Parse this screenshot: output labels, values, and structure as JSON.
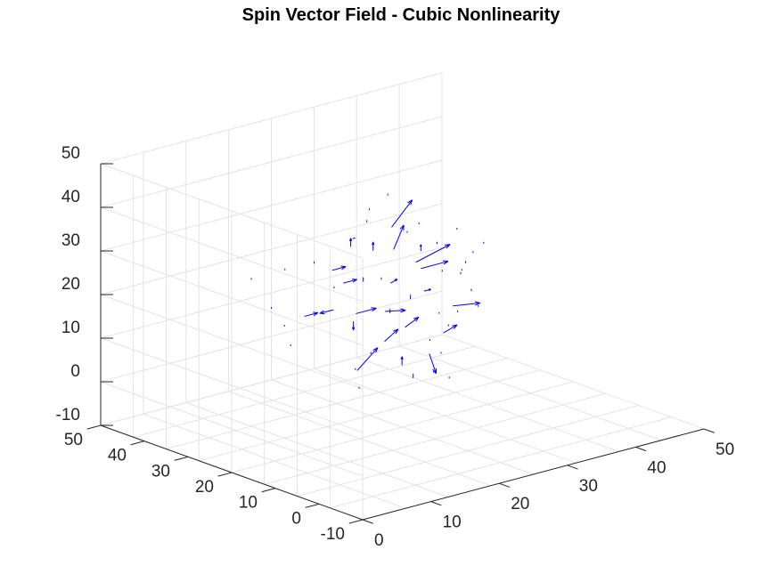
{
  "chart_data": {
    "type": "quiver3d",
    "title": "Spin Vector Field - Cubic Nonlinearity",
    "xlabel": "",
    "ylabel": "",
    "zlabel": "",
    "xlim": [
      0,
      50
    ],
    "ylim": [
      -10,
      50
    ],
    "zlim": [
      -10,
      50
    ],
    "x_ticks": [
      "0",
      "10",
      "20",
      "30",
      "40",
      "50"
    ],
    "y_ticks": [
      "-10",
      "0",
      "10",
      "20",
      "30",
      "40",
      "50"
    ],
    "z_ticks": [
      "-10",
      "0",
      "10",
      "20",
      "30",
      "40",
      "50"
    ],
    "grid": true,
    "box": true,
    "arrow_color": "#0000ff",
    "x_grid_values": [
      0,
      6.25,
      12.5,
      18.75,
      25,
      31.25,
      37.5,
      43.75,
      50
    ],
    "y_grid_values": [
      -10,
      -2.5,
      5,
      12.5,
      20,
      27.5,
      35,
      42.5,
      50
    ],
    "z_grid_values": [
      -10,
      0,
      10,
      20,
      30,
      40,
      50
    ],
    "vectors": [
      {
        "x": 23,
        "y": 25,
        "z": 36,
        "u": 0,
        "v": 0,
        "w": 0.5
      },
      {
        "x": 19,
        "y": 22,
        "z": 35,
        "u": 0.4,
        "v": 0,
        "w": 0
      },
      {
        "x": 30,
        "y": 24,
        "z": 33,
        "u": 0,
        "v": 0,
        "w": 0.4
      },
      {
        "x": 27,
        "y": 22,
        "z": 33,
        "u": 0,
        "v": 0,
        "w": 0.4
      },
      {
        "x": 26,
        "y": 24,
        "z": 34,
        "u": 3,
        "v": 0,
        "w": 5
      },
      {
        "x": 25,
        "y": 22,
        "z": 30,
        "u": 1.5,
        "v": 0,
        "w": 5
      },
      {
        "x": 22,
        "y": 22,
        "z": 31,
        "u": 0,
        "v": 0,
        "w": 2
      },
      {
        "x": 20,
        "y": 24,
        "z": 32,
        "u": 0,
        "v": 0,
        "w": 2
      },
      {
        "x": 32,
        "y": 23,
        "z": 28,
        "u": 0,
        "v": 0,
        "w": 0.5
      },
      {
        "x": 29,
        "y": 22,
        "z": 28,
        "u": 0,
        "v": 0,
        "w": 1.5
      },
      {
        "x": 16,
        "y": 22,
        "z": 29,
        "u": 2,
        "v": 0,
        "w": 0
      },
      {
        "x": 14,
        "y": 23,
        "z": 31,
        "u": 0,
        "v": 0,
        "w": 0.5
      },
      {
        "x": 27,
        "y": 20,
        "z": 27,
        "u": 5,
        "v": 0,
        "w": 2
      },
      {
        "x": 29,
        "y": 22,
        "z": 24,
        "u": 4,
        "v": 0,
        "w": 0
      },
      {
        "x": 17,
        "y": 21,
        "z": 26,
        "u": 2,
        "v": 0,
        "w": 0
      },
      {
        "x": 18,
        "y": 18,
        "z": 27,
        "u": 0,
        "v": 0,
        "w": 1
      },
      {
        "x": 15,
        "y": 20,
        "z": 26,
        "u": 0,
        "v": 0,
        "w": 0.4
      },
      {
        "x": 22,
        "y": 18,
        "z": 25,
        "u": 1,
        "v": 0,
        "w": 0.5
      },
      {
        "x": 20,
        "y": 17,
        "z": 27,
        "u": 0,
        "v": 0,
        "w": 0.5
      },
      {
        "x": 27,
        "y": 14,
        "z": 27,
        "u": 0,
        "v": 0,
        "w": 0.4
      },
      {
        "x": 15,
        "y": 15,
        "z": 22,
        "u": 3,
        "v": 0,
        "w": 0
      },
      {
        "x": 13,
        "y": 17,
        "z": 23,
        "u": -2,
        "v": 0,
        "w": 0
      },
      {
        "x": 14,
        "y": 14,
        "z": 21,
        "u": 0,
        "v": 0,
        "w": -2
      },
      {
        "x": 18,
        "y": 13,
        "z": 22,
        "u": 3,
        "v": 0,
        "w": -1
      },
      {
        "x": 20,
        "y": 15,
        "z": 21,
        "u": 0,
        "v": 0,
        "w": -1
      },
      {
        "x": 23,
        "y": 15,
        "z": 22,
        "u": 0,
        "v": 0,
        "w": 1
      },
      {
        "x": 25,
        "y": 15,
        "z": 23,
        "u": 1,
        "v": 0,
        "w": 0
      },
      {
        "x": 26,
        "y": 10,
        "z": 21,
        "u": 4,
        "v": 0,
        "w": -1
      },
      {
        "x": 30,
        "y": 12,
        "z": 22,
        "u": 0,
        "v": 0,
        "w": 0.5
      },
      {
        "x": 31,
        "y": 16,
        "z": 24,
        "u": 0,
        "v": 0,
        "w": 0.5
      },
      {
        "x": 33,
        "y": 18,
        "z": 25,
        "u": 0,
        "v": 0,
        "w": 0.5
      },
      {
        "x": 24,
        "y": 10,
        "z": 20,
        "u": 0,
        "v": 0,
        "w": 0.4
      },
      {
        "x": 19,
        "y": 10,
        "z": 19,
        "u": 2,
        "v": 0,
        "w": 1.5
      },
      {
        "x": 16,
        "y": 10,
        "z": 17,
        "u": 2,
        "v": 0,
        "w": 2
      },
      {
        "x": 20,
        "y": 6,
        "z": 14,
        "u": 1,
        "v": 0,
        "w": -5
      },
      {
        "x": 24,
        "y": 9,
        "z": 16,
        "u": 2,
        "v": 0,
        "w": 1
      },
      {
        "x": 22,
        "y": 9,
        "z": 15,
        "u": 0,
        "v": 0,
        "w": 0.4
      },
      {
        "x": 12,
        "y": 10,
        "z": 12,
        "u": 3,
        "v": 0,
        "w": 4
      },
      {
        "x": 14,
        "y": 10,
        "z": 15,
        "u": 0,
        "v": 0,
        "w": 0.4
      },
      {
        "x": 16,
        "y": 6,
        "z": 13,
        "u": 0,
        "v": 0,
        "w": 2
      },
      {
        "x": 20,
        "y": 5,
        "z": 10,
        "u": 0,
        "v": 0,
        "w": 0.4
      },
      {
        "x": 17,
        "y": 5,
        "z": 10,
        "u": 0,
        "v": 0,
        "w": 1
      },
      {
        "x": 23,
        "y": 8,
        "z": 12,
        "u": 0,
        "v": 0,
        "w": 0.4
      },
      {
        "x": 26,
        "y": 11,
        "z": 16,
        "u": 0,
        "v": 0,
        "w": 0.4
      },
      {
        "x": 21,
        "y": 3,
        "z": 9,
        "u": 0,
        "v": 0,
        "w": 0.4
      },
      {
        "x": 11,
        "y": 8,
        "z": 9,
        "u": 0,
        "v": 0,
        "w": 0.4
      },
      {
        "x": 13,
        "y": 12,
        "z": 11,
        "u": 0,
        "v": 0,
        "w": 0.4
      },
      {
        "x": 8,
        "y": 19,
        "z": 16,
        "u": 0,
        "v": 0,
        "w": 0.4
      },
      {
        "x": 9,
        "y": 22,
        "z": 19,
        "u": 0,
        "v": 0,
        "w": 0.4
      },
      {
        "x": 9,
        "y": 25,
        "z": 22,
        "u": 0,
        "v": 0,
        "w": 0.4
      },
      {
        "x": 10,
        "y": 19,
        "z": 22,
        "u": 2,
        "v": 0,
        "w": 0
      },
      {
        "x": 11,
        "y": 25,
        "z": 30,
        "u": 0,
        "v": 0,
        "w": 0.4
      },
      {
        "x": 8,
        "y": 28,
        "z": 28,
        "u": 0,
        "v": 0,
        "w": 0.4
      },
      {
        "x": 33,
        "y": 20,
        "z": 32,
        "u": 0,
        "v": 0,
        "w": 0.4
      },
      {
        "x": 35,
        "y": 17,
        "z": 29,
        "u": 0,
        "v": 0,
        "w": 0.4
      },
      {
        "x": 36,
        "y": 21,
        "z": 25,
        "u": 0,
        "v": 0,
        "w": 0.4
      },
      {
        "x": 35,
        "y": 22,
        "z": 21,
        "u": 0,
        "v": 0,
        "w": 0.4
      },
      {
        "x": 31,
        "y": 12,
        "z": 18,
        "u": 0,
        "v": 0,
        "w": 0.4
      },
      {
        "x": 28,
        "y": 12,
        "z": 18,
        "u": 0,
        "v": 0,
        "w": 0.4
      },
      {
        "x": 24,
        "y": 26,
        "z": 38,
        "u": 0,
        "v": 0,
        "w": 0.4
      },
      {
        "x": 28,
        "y": 28,
        "z": 39,
        "u": 0,
        "v": 0,
        "w": 0.4
      }
    ]
  }
}
